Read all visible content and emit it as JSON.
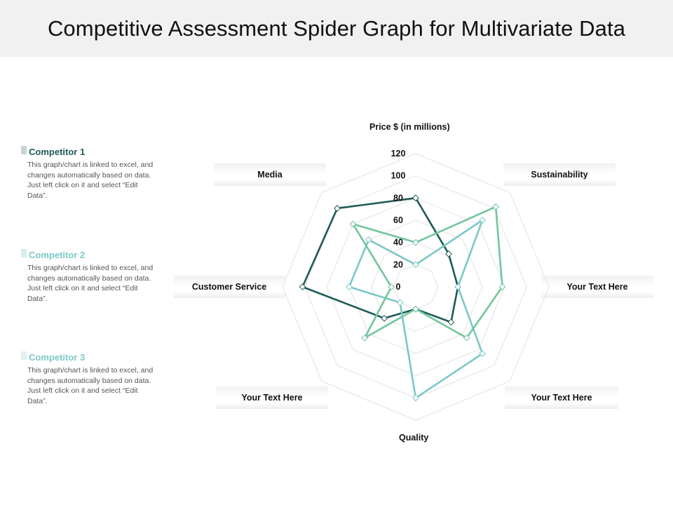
{
  "title": "Competitive Assessment Spider Graph for Multivariate Data",
  "legend": [
    {
      "name": "Competitor 1",
      "color": "#1e5b57",
      "desc": "This graph/chart is linked to excel, and changes automatically based on data. Just left click on it and select “Edit Data”."
    },
    {
      "name": "Competitor 2",
      "color": "#7cc8c8",
      "desc": "This graph/chart is linked to excel, and changes automatically based on data. Just left click on it and select “Edit Data”."
    },
    {
      "name": "Competitor 3",
      "color": "#72c59c",
      "desc": "This graph/chart is linked to excel, and changes automatically based on data. Just left click on it and select “Edit Data”."
    }
  ],
  "chart_data": {
    "type": "radar",
    "axes": [
      "Price $ (in millions)",
      "Sustainability",
      "Your Text Here",
      "Your Text Here",
      "Quality",
      "Your Text Here",
      "Customer Service",
      "Media"
    ],
    "ticks": [
      0,
      20,
      40,
      60,
      80,
      100,
      120
    ],
    "range": [
      0,
      120
    ],
    "grid": true,
    "series": [
      {
        "name": "Competitor 1",
        "color": "#1e5b57",
        "values": [
          80,
          42,
          38,
          45,
          20,
          40,
          102,
          100
        ]
      },
      {
        "name": "Competitor 2",
        "color": "#7cc8c8",
        "values": [
          20,
          85,
          38,
          85,
          100,
          20,
          60,
          60
        ]
      },
      {
        "name": "Competitor 3",
        "color": "#72c59c",
        "values": [
          40,
          102,
          78,
          65,
          20,
          65,
          22,
          80
        ]
      }
    ]
  }
}
